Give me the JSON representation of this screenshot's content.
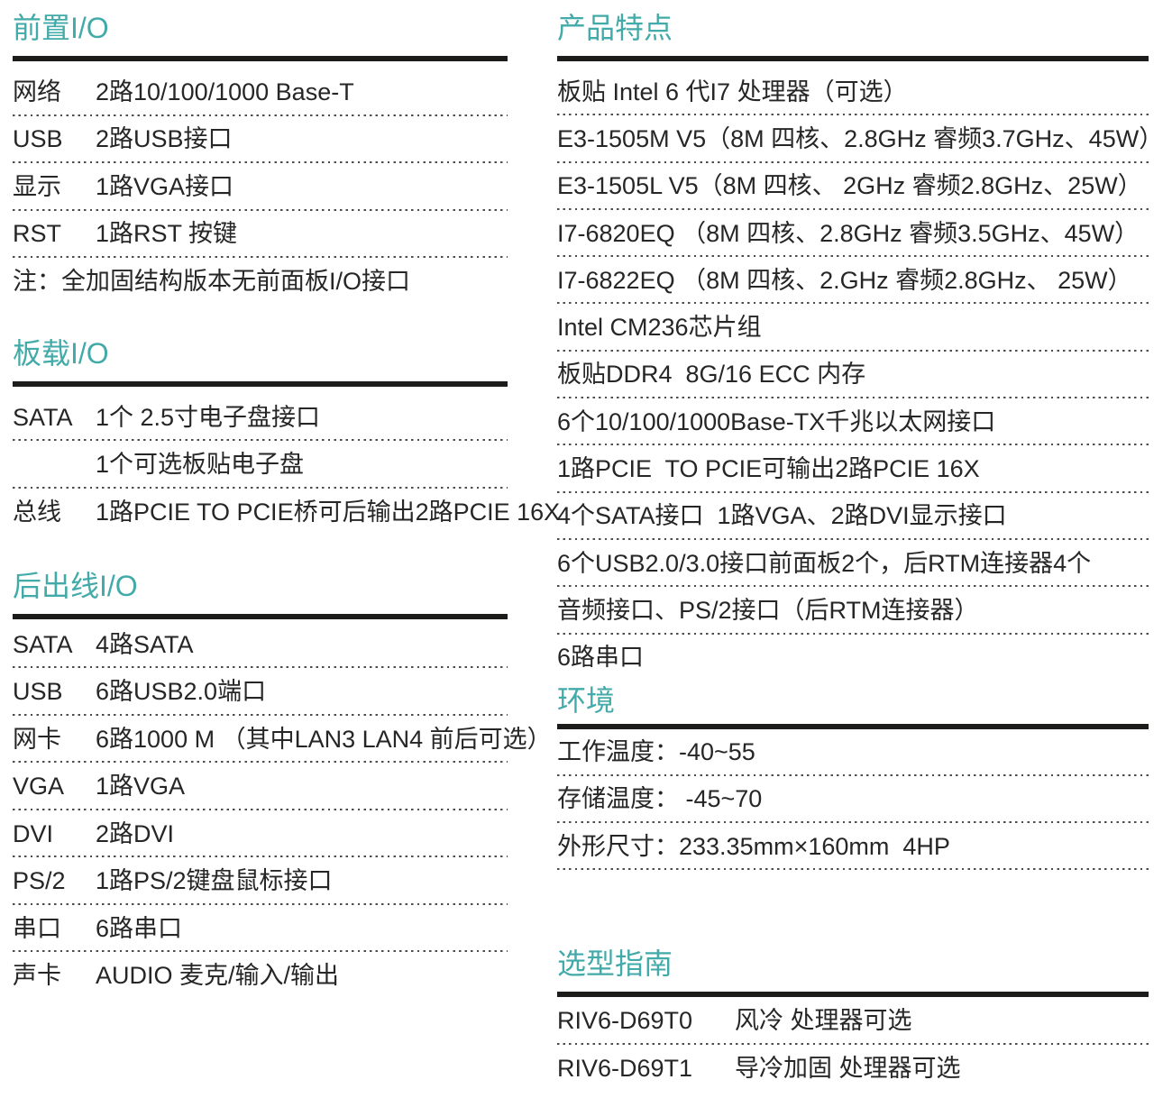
{
  "colors": {
    "accent": "#42aaa8",
    "text": "#262626",
    "rule": "#1c1c1b",
    "dot": "#4d4d4d"
  },
  "left": {
    "front_io": {
      "title": "前置I/O",
      "rows": [
        {
          "label": "网络",
          "value": "2路10/100/1000 Base-T"
        },
        {
          "label": "USB",
          "value": "2路USB接口"
        },
        {
          "label": "显示",
          "value": "1路VGA接口"
        },
        {
          "label": "RST",
          "value": "1路RST 按键"
        }
      ],
      "note_label": "注：",
      "note": "全加固结构版本无前面板I/O接口"
    },
    "onboard_io": {
      "title": "板载I/O",
      "rows": [
        {
          "label": "SATA",
          "value": "1个 2.5寸电子盘接口"
        },
        {
          "label": "",
          "value": "1个可选板贴电子盘"
        },
        {
          "label": "总线",
          "value": "1路PCIE TO PCIE桥可后输出2路PCIE 16X"
        }
      ]
    },
    "rear_io": {
      "title": "后出线I/O",
      "rows": [
        {
          "label": "SATA",
          "value": "4路SATA"
        },
        {
          "label": "USB",
          "value": "6路USB2.0端口"
        },
        {
          "label": "网卡",
          "value": "6路1000 M （其中LAN3 LAN4 前后可选）"
        },
        {
          "label": "VGA",
          "value": "1路VGA"
        },
        {
          "label": "DVI",
          "value": "2路DVI"
        },
        {
          "label": "PS/2",
          "value": "1路PS/2键盘鼠标接口"
        },
        {
          "label": "串口",
          "value": "6路串口"
        },
        {
          "label": "声卡",
          "value": "AUDIO 麦克/输入/输出"
        }
      ]
    }
  },
  "right": {
    "features": {
      "title": "产品特点",
      "items": [
        "板贴 Intel 6 代I7 处理器（可选）",
        "E3-1505M V5（8M 四核、2.8GHz 睿频3.7GHz、45W）",
        "E3-1505L V5（8M 四核、 2GHz 睿频2.8GHz、25W）",
        "I7-6820EQ （8M 四核、2.8GHz 睿频3.5GHz、45W）",
        "I7-6822EQ （8M 四核、2.GHz 睿频2.8GHz、 25W）",
        "Intel CM236芯片组",
        "板贴DDR4  8G/16 ECC 内存",
        "6个10/100/1000Base-TX千兆以太网接口",
        "1路PCIE  TO PCIE可输出2路PCIE 16X",
        "4个SATA接口  1路VGA、2路DVI显示接口",
        "6个USB2.0/3.0接口前面板2个，后RTM连接器4个",
        "音频接口、PS/2接口（后RTM连接器）",
        "6路串口"
      ]
    },
    "environment": {
      "title": "环境",
      "rows": [
        {
          "label": "工作温度：",
          "value": "-40~55"
        },
        {
          "label": "存储温度：",
          "value": " -45~70"
        },
        {
          "label": "外形尺寸：",
          "value": "233.35mm×160mm  4HP"
        }
      ]
    },
    "selection_guide": {
      "title": "选型指南",
      "rows": [
        {
          "model": "RIV6-D69T0",
          "desc": "风冷 处理器可选"
        },
        {
          "model": "RIV6-D69T1",
          "desc": "导冷加固 处理器可选"
        }
      ]
    }
  }
}
